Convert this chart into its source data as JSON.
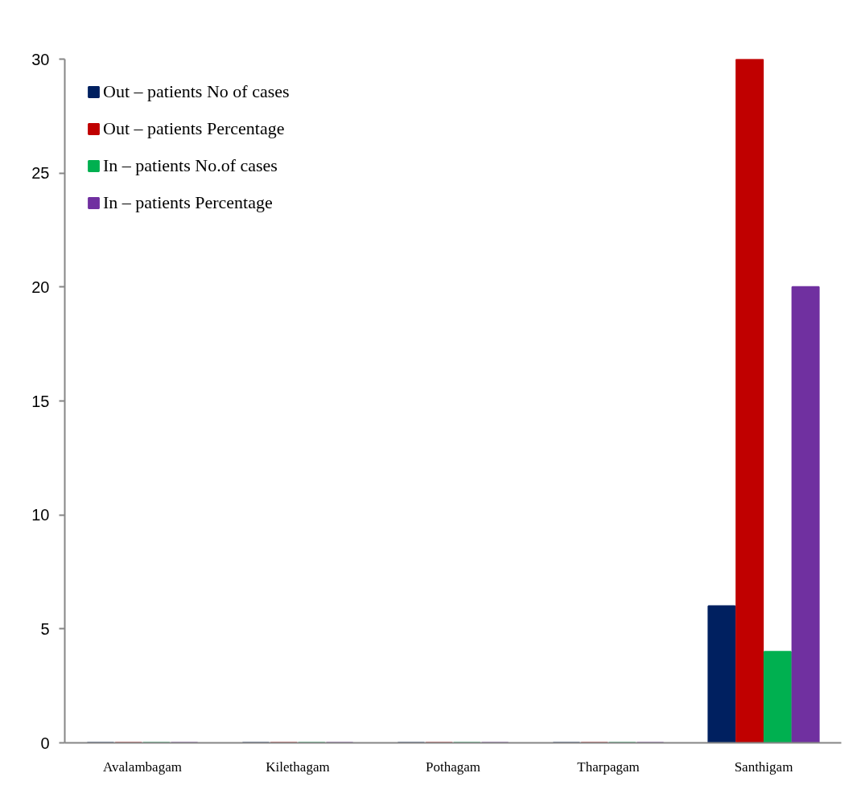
{
  "chart_data": {
    "type": "bar",
    "categories": [
      "Avalambagam",
      "Kilethagam",
      "Pothagam",
      "Tharpagam",
      "Santhigam"
    ],
    "series": [
      {
        "name": "Out – patients No of cases",
        "color": "#002060",
        "values": [
          0,
          0,
          0,
          0,
          6
        ]
      },
      {
        "name": "Out – patients Percentage",
        "color": "#c00000",
        "values": [
          0,
          0,
          0,
          0,
          30
        ]
      },
      {
        "name": "In – patients No.of cases",
        "color": "#00b050",
        "values": [
          0,
          0,
          0,
          0,
          4
        ]
      },
      {
        "name": "In – patients Percentage",
        "color": "#7030a0",
        "values": [
          0,
          0,
          0,
          0,
          20
        ]
      }
    ],
    "ylim": [
      0,
      30
    ],
    "yticks": [
      0,
      5,
      10,
      15,
      20,
      25,
      30
    ],
    "legend": "top left"
  }
}
